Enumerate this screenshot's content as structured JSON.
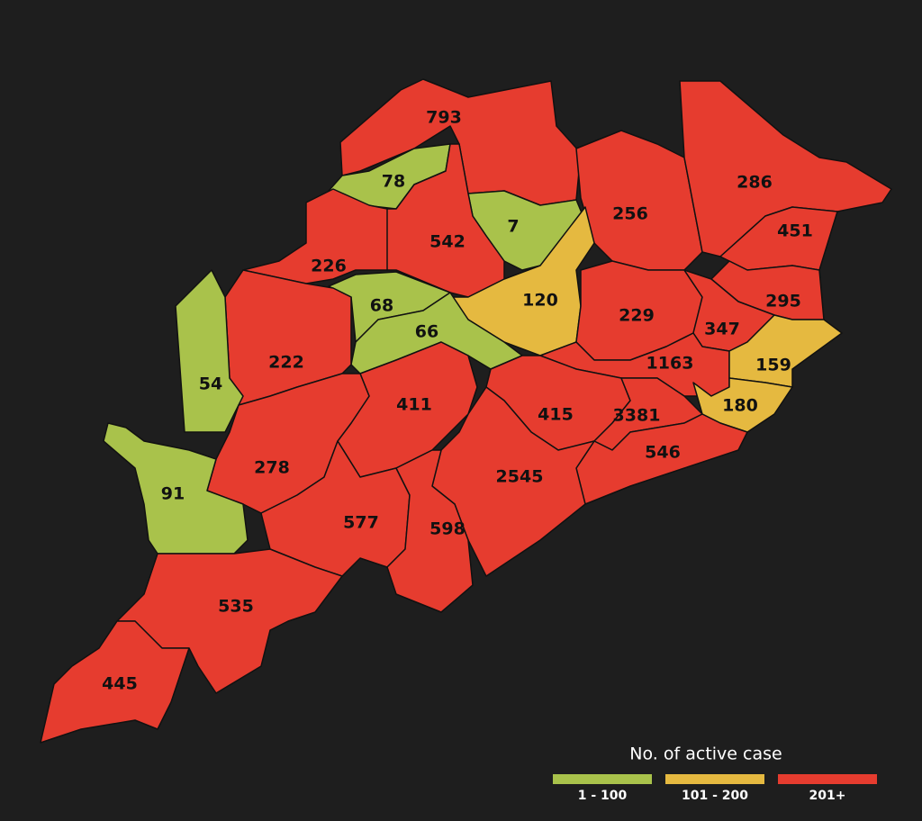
{
  "legend": {
    "title": "No. of active case",
    "items": [
      {
        "label": "1 - 100",
        "color": "#a9c24b"
      },
      {
        "label": "101 - 200",
        "color": "#e5b940"
      },
      {
        "label": "201+",
        "color": "#e63c2f"
      }
    ]
  },
  "districts": [
    {
      "value": 793,
      "color": "#e63c2f"
    },
    {
      "value": 78,
      "color": "#a9c24b"
    },
    {
      "value": 7,
      "color": "#a9c24b"
    },
    {
      "value": 542,
      "color": "#e63c2f"
    },
    {
      "value": 256,
      "color": "#e63c2f"
    },
    {
      "value": 286,
      "color": "#e63c2f"
    },
    {
      "value": 451,
      "color": "#e63c2f"
    },
    {
      "value": 226,
      "color": "#e63c2f"
    },
    {
      "value": 68,
      "color": "#a9c24b"
    },
    {
      "value": 120,
      "color": "#e5b940"
    },
    {
      "value": 229,
      "color": "#e63c2f"
    },
    {
      "value": 295,
      "color": "#e63c2f"
    },
    {
      "value": 66,
      "color": "#a9c24b"
    },
    {
      "value": 347,
      "color": "#e63c2f"
    },
    {
      "value": 222,
      "color": "#e63c2f"
    },
    {
      "value": 54,
      "color": "#a9c24b"
    },
    {
      "value": 1163,
      "color": "#e63c2f"
    },
    {
      "value": 159,
      "color": "#e5b940"
    },
    {
      "value": 411,
      "color": "#e63c2f"
    },
    {
      "value": 415,
      "color": "#e63c2f"
    },
    {
      "value": 3381,
      "color": "#e63c2f"
    },
    {
      "value": 180,
      "color": "#e5b940"
    },
    {
      "value": 278,
      "color": "#e63c2f"
    },
    {
      "value": 546,
      "color": "#e63c2f"
    },
    {
      "value": 91,
      "color": "#a9c24b"
    },
    {
      "value": 2545,
      "color": "#e63c2f"
    },
    {
      "value": 577,
      "color": "#e63c2f"
    },
    {
      "value": 598,
      "color": "#e63c2f"
    },
    {
      "value": 535,
      "color": "#e63c2f"
    },
    {
      "value": 445,
      "color": "#e63c2f"
    }
  ]
}
